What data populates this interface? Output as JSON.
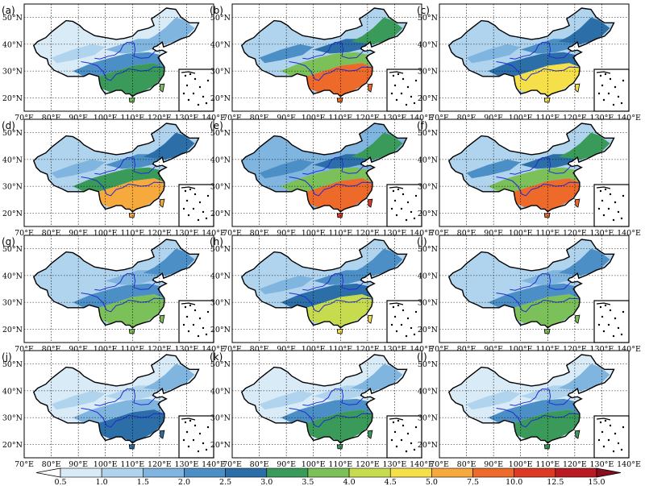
{
  "figure": {
    "panel_labels": [
      "(a)",
      "(b)",
      "(c)",
      "(d)",
      "(e)",
      "(f)",
      "(g)",
      "(h)",
      "(i)",
      "(j)",
      "(k)",
      "(l)"
    ],
    "x_ticks": [
      "70°E",
      "80°E",
      "90°E",
      "100°E",
      "110°E",
      "120°E",
      "130°E",
      "140°E"
    ],
    "y_ticks": [
      "20°N",
      "30°N",
      "40°N",
      "50°N"
    ],
    "lon_range": [
      70,
      140
    ],
    "lat_range": [
      15,
      55
    ],
    "intensity": [
      0.55,
      0.95,
      0.78,
      0.85,
      1.0,
      0.95,
      0.6,
      0.75,
      0.62,
      0.45,
      0.5,
      0.5
    ]
  },
  "colorbar": {
    "labels": [
      "0.5",
      "1.0",
      "1.5",
      "2.0",
      "2.5",
      "3.0",
      "3.5",
      "4.0",
      "4.5",
      "5.0",
      "7.5",
      "10.0",
      "12.5",
      "15.0"
    ],
    "colors": [
      "#ffffff",
      "#d9ebf7",
      "#b0d4ee",
      "#7fb5df",
      "#4c8fc6",
      "#2c6fa8",
      "#3a9a5a",
      "#7cc05a",
      "#c6dc4e",
      "#f5e04a",
      "#f6a93c",
      "#ee6a2a",
      "#dc3a24",
      "#b81c22",
      "#8a0f1e"
    ]
  }
}
